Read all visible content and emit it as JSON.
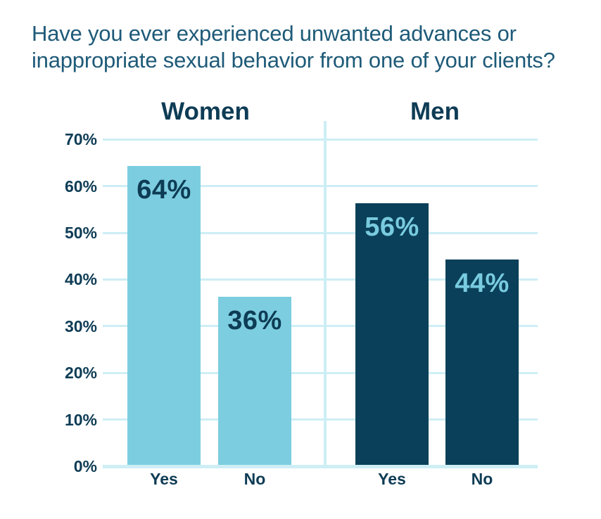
{
  "title": "Have you ever experienced unwanted advances or inappropriate sexual behavior from one of your clients?",
  "colors": {
    "background": "#ffffff",
    "title_text": "#1e5a78",
    "axis_text": "#0e3c55",
    "gridline": "#cdeef5",
    "women_bar": "#7ccde0",
    "men_bar": "#0a4059",
    "women_value_text": "#0e3c55",
    "men_value_text": "#79cbdf"
  },
  "chart_data": {
    "type": "bar",
    "title": "Have you ever experienced unwanted advances or inappropriate sexual behavior from one of your clients?",
    "xlabel": "",
    "ylabel": "",
    "ylim": [
      0,
      70
    ],
    "grid": true,
    "legend": "none",
    "y_ticks": [
      {
        "label": "70%",
        "value": 70
      },
      {
        "label": "60%",
        "value": 60
      },
      {
        "label": "50%",
        "value": 50
      },
      {
        "label": "40%",
        "value": 40
      },
      {
        "label": "30%",
        "value": 30
      },
      {
        "label": "20%",
        "value": 20
      },
      {
        "label": "10%",
        "value": 10
      },
      {
        "label": "0%",
        "value": 0
      }
    ],
    "groups": [
      {
        "name": "Women",
        "bar_color": "#7ccde0",
        "value_text_color": "#0e3c55",
        "bars": [
          {
            "category": "Yes",
            "value": 64,
            "label": "64%"
          },
          {
            "category": "No",
            "value": 36,
            "label": "36%"
          }
        ]
      },
      {
        "name": "Men",
        "bar_color": "#0a4059",
        "value_text_color": "#79cbdf",
        "bars": [
          {
            "category": "Yes",
            "value": 56,
            "label": "56%"
          },
          {
            "category": "No",
            "value": 44,
            "label": "44%"
          }
        ]
      }
    ]
  }
}
